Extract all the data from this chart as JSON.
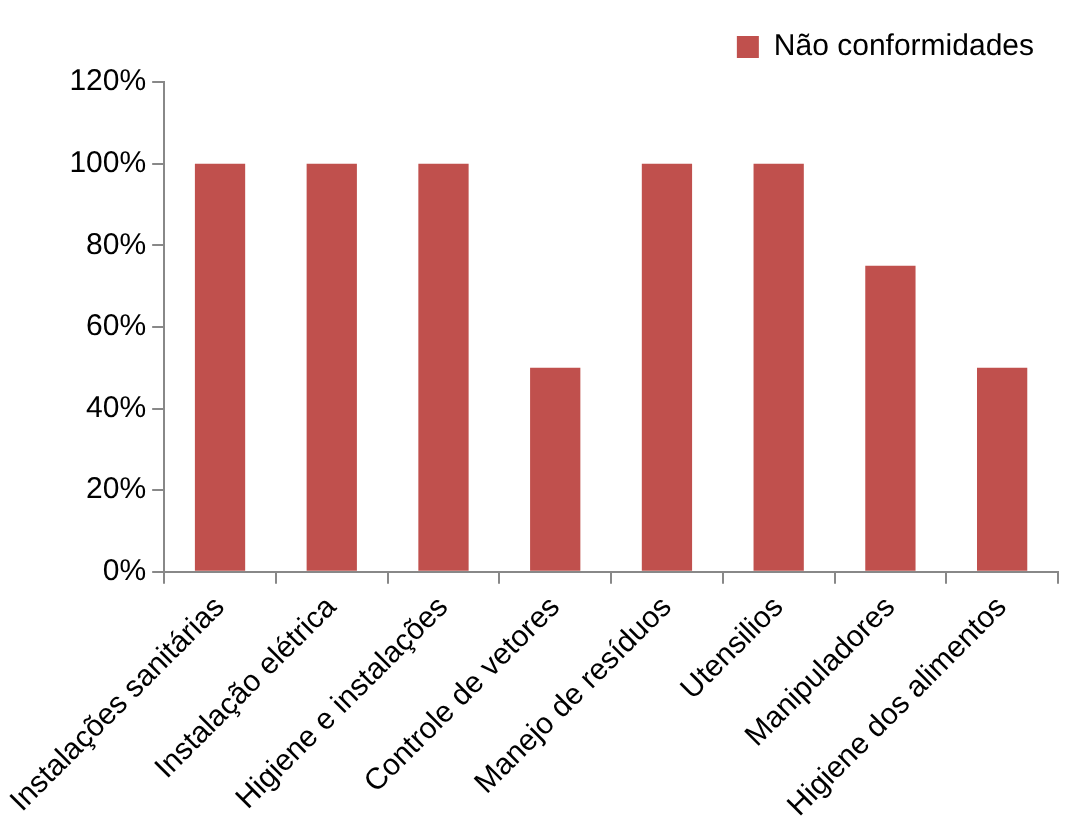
{
  "chart_data": {
    "type": "bar",
    "categories": [
      "Instalações sanitárias",
      "Instalação elétrica",
      "Higiene e instalações",
      "Controle de vetores",
      "Manejo de resíduos",
      "Utensilios",
      "Manipuladores",
      "Higiene dos alimentos"
    ],
    "series": [
      {
        "name": "Não conformidades",
        "color": "#c0504d",
        "values": [
          100,
          100,
          100,
          50,
          100,
          100,
          75,
          50
        ]
      }
    ],
    "ylim": [
      0,
      120
    ],
    "yticks": [
      {
        "value": 0,
        "label": "0%"
      },
      {
        "value": 20,
        "label": "20%"
      },
      {
        "value": 40,
        "label": "40%"
      },
      {
        "value": 60,
        "label": "60%"
      },
      {
        "value": 80,
        "label": "80%"
      },
      {
        "value": 100,
        "label": "100%"
      },
      {
        "value": 120,
        "label": "120%"
      }
    ],
    "grid": false,
    "legend": "top right"
  }
}
